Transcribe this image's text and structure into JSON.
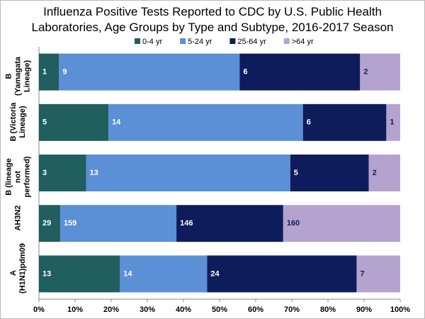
{
  "chart_data": {
    "type": "bar",
    "orientation": "horizontal",
    "stacking": "percent",
    "title": "Influenza Positive Tests Reported to CDC by U.S. Public Health Laboratories, Age Groups by Type and Subtype, 2016-2017 Season",
    "categories": [
      "B (Yamagata Lineage)",
      "B (Victoria Lineage)",
      "B (lineage not performed)",
      "AH3N2",
      "A (H1N1)pdm09"
    ],
    "series": [
      {
        "name": "0-4 yr",
        "color": "#215e5e",
        "label_color": "#ffffff",
        "values": [
          1,
          5,
          3,
          29,
          13
        ]
      },
      {
        "name": "5-24 yr",
        "color": "#5b8fd6",
        "label_color": "#ffffff",
        "values": [
          9,
          14,
          13,
          159,
          14
        ]
      },
      {
        "name": "25-64 yr",
        "color": "#0f1c5c",
        "label_color": "#ffffff",
        "values": [
          6,
          6,
          5,
          146,
          24
        ]
      },
      {
        "name": ">64 yr",
        "color": "#b4a3cf",
        "label_color": "#0f1c5c",
        "values": [
          2,
          1,
          2,
          160,
          7
        ]
      }
    ],
    "xlim": [
      0,
      100
    ],
    "xticks": [
      {
        "value": 0,
        "label": "0%"
      },
      {
        "value": 10,
        "label": "10%"
      },
      {
        "value": 20,
        "label": "20%"
      },
      {
        "value": 30,
        "label": "30%"
      },
      {
        "value": 40,
        "label": "40%"
      },
      {
        "value": 50,
        "label": "50%"
      },
      {
        "value": 60,
        "label": "60%"
      },
      {
        "value": 70,
        "label": "70%"
      },
      {
        "value": 80,
        "label": "80%"
      },
      {
        "value": 90,
        "label": "90%"
      },
      {
        "value": 100,
        "label": "100%"
      }
    ],
    "legend": "top"
  }
}
